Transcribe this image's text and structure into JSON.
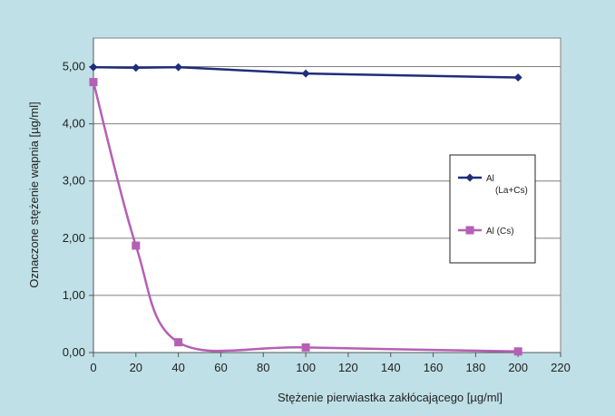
{
  "colors": {
    "background": "#bfe0e6",
    "plot_area": "#ffffff",
    "series_1": "#1f2d7a",
    "series_2": "#b55fb5"
  },
  "chart_data": {
    "type": "line",
    "title": "",
    "xlabel": "Stężenie pierwiastka zakłócającego  [µg/ml]",
    "ylabel": "Oznaczone stężenie wapnia [µg/ml]",
    "xlim": [
      0,
      220
    ],
    "ylim": [
      0,
      5.5
    ],
    "x_ticks": [
      0,
      20,
      40,
      60,
      80,
      100,
      120,
      140,
      160,
      180,
      200,
      220
    ],
    "x_tick_labels": [
      "0",
      "20",
      "40",
      "60",
      "80",
      "100",
      "120",
      "140",
      "160",
      "180",
      "200",
      "220"
    ],
    "y_ticks": [
      0,
      1,
      2,
      3,
      4,
      5
    ],
    "y_tick_labels": [
      "0,00",
      "1,00",
      "2,00",
      "3,00",
      "4,00",
      "5,00"
    ],
    "grid": "horizontal",
    "legend_position": "right",
    "series": [
      {
        "name": "Al\n(La+Cs)",
        "color": "#1f2d7a",
        "marker": "diamond",
        "smooth": false,
        "x": [
          0,
          20,
          40,
          100,
          200
        ],
        "y": [
          4.99,
          4.98,
          4.99,
          4.88,
          4.81
        ]
      },
      {
        "name": "Al (Cs)",
        "color": "#b55fb5",
        "marker": "square",
        "smooth": true,
        "x": [
          0,
          20,
          40,
          100,
          200
        ],
        "y": [
          4.73,
          1.87,
          0.18,
          0.09,
          0.02
        ]
      }
    ]
  }
}
